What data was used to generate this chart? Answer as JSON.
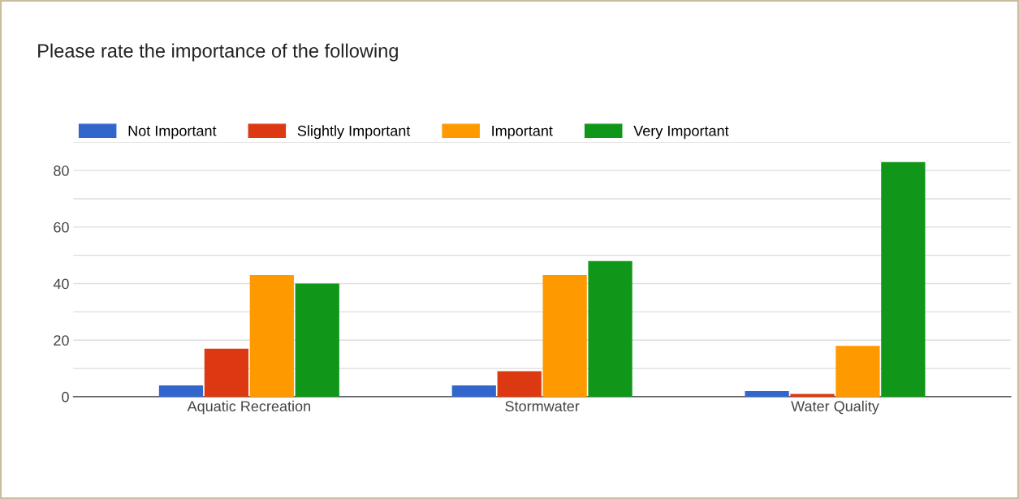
{
  "chart_data": {
    "type": "bar",
    "title": "Please rate the importance of the following",
    "categories": [
      "Aquatic Recreation",
      "Stormwater",
      "Water Quality"
    ],
    "series": [
      {
        "name": "Not Important",
        "color": "#3366cc",
        "values": [
          4,
          4,
          2
        ]
      },
      {
        "name": "Slightly Important",
        "color": "#dc3912",
        "values": [
          17,
          9,
          1
        ]
      },
      {
        "name": "Important",
        "color": "#ff9900",
        "values": [
          43,
          43,
          18
        ]
      },
      {
        "name": "Very Important",
        "color": "#109618",
        "values": [
          40,
          48,
          83
        ]
      }
    ],
    "ylim": [
      0,
      90
    ],
    "yticks": [
      0,
      {
        "value": 10,
        "label": null
      },
      20,
      {
        "value": 30,
        "label": null
      },
      40,
      {
        "value": 50,
        "label": null
      },
      60,
      {
        "value": 70,
        "label": null
      },
      80,
      {
        "value": 90,
        "label": null
      }
    ],
    "grid": "y",
    "legend": "top left"
  }
}
